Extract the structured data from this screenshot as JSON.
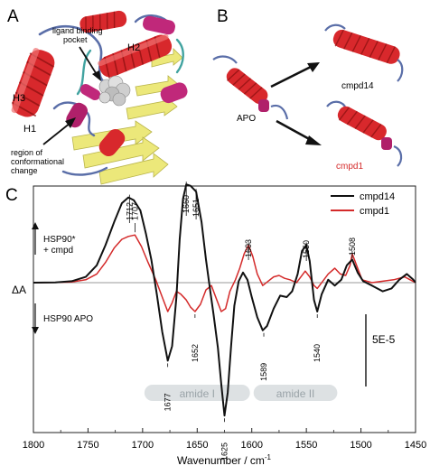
{
  "panels": {
    "a": {
      "letter": "A",
      "labels": {
        "ligand_pocket": [
          "ligand binding",
          "pocket"
        ],
        "h1": "H1",
        "h2": "H2",
        "h3": "H3",
        "region": [
          "region of",
          "conformational",
          "change"
        ]
      }
    },
    "b": {
      "letter": "B",
      "labels": {
        "apo": "APO",
        "cmpd14": "cmpd14",
        "cmpd1": "cmpd1"
      }
    },
    "c": {
      "letter": "C"
    }
  },
  "colors": {
    "helix_red": "#d8282c",
    "helix_magenta": "#c0287a",
    "coil_blue": "#5a6ea8",
    "sheet_yellow": "#ece87a",
    "ligand_gray": "#c9c9c9",
    "cmpd14": "#111111",
    "cmpd1": "#d42a2a",
    "baseline": "#9a9a9a",
    "band_gray": "#dde1e3"
  },
  "chart_data": {
    "type": "line",
    "xlabel_main": "Wavenumber / cm",
    "xlabel_sup": "-1",
    "ylabel": "ΔA",
    "xlim": [
      1800,
      1450
    ],
    "x_reversed": true,
    "xticks": [
      1800,
      1750,
      1700,
      1650,
      1600,
      1550,
      1500,
      1450
    ],
    "ylim_rel": [
      -1.0,
      0.8
    ],
    "legend_position": "top-right",
    "series": [
      {
        "name": "cmpd14",
        "color": "#111111",
        "points": [
          [
            1800,
            0
          ],
          [
            1780,
            0.002
          ],
          [
            1765,
            0.01
          ],
          [
            1752,
            0.04
          ],
          [
            1742,
            0.12
          ],
          [
            1734,
            0.26
          ],
          [
            1726,
            0.42
          ],
          [
            1719,
            0.55
          ],
          [
            1713,
            0.59
          ],
          [
            1708,
            0.57
          ],
          [
            1702,
            0.5
          ],
          [
            1697,
            0.34
          ],
          [
            1692,
            0.16
          ],
          [
            1687,
            -0.08
          ],
          [
            1682,
            -0.34
          ],
          [
            1677,
            -0.54
          ],
          [
            1673,
            -0.44
          ],
          [
            1669,
            -0.1
          ],
          [
            1666,
            0.3
          ],
          [
            1663,
            0.58
          ],
          [
            1660,
            0.68
          ],
          [
            1656,
            0.67
          ],
          [
            1651,
            0.63
          ],
          [
            1646,
            0.42
          ],
          [
            1642,
            0.16
          ],
          [
            1638,
            -0.06
          ],
          [
            1635,
            -0.22
          ],
          [
            1631,
            -0.45
          ],
          [
            1628,
            -0.7
          ],
          [
            1625,
            -0.92
          ],
          [
            1622,
            -0.76
          ],
          [
            1619,
            -0.44
          ],
          [
            1616,
            -0.16
          ],
          [
            1612,
            0.01
          ],
          [
            1608,
            0.07
          ],
          [
            1604,
            0.02
          ],
          [
            1600,
            -0.1
          ],
          [
            1595,
            -0.24
          ],
          [
            1590,
            -0.33
          ],
          [
            1586,
            -0.3
          ],
          [
            1580,
            -0.18
          ],
          [
            1574,
            -0.09
          ],
          [
            1568,
            -0.1
          ],
          [
            1563,
            -0.06
          ],
          [
            1558,
            0.06
          ],
          [
            1554,
            0.22
          ],
          [
            1550,
            0.26
          ],
          [
            1547,
            0.15
          ],
          [
            1543,
            -0.12
          ],
          [
            1540,
            -0.2
          ],
          [
            1536,
            -0.08
          ],
          [
            1530,
            0.02
          ],
          [
            1524,
            -0.02
          ],
          [
            1518,
            0.02
          ],
          [
            1513,
            0.12
          ],
          [
            1508,
            0.16
          ],
          [
            1503,
            0.07
          ],
          [
            1498,
            0.01
          ],
          [
            1490,
            -0.02
          ],
          [
            1480,
            -0.06
          ],
          [
            1472,
            -0.04
          ],
          [
            1465,
            0.02
          ],
          [
            1458,
            0.06
          ],
          [
            1452,
            0.02
          ],
          [
            1450,
            0
          ]
        ]
      },
      {
        "name": "cmpd1",
        "color": "#d42a2a",
        "points": [
          [
            1800,
            0
          ],
          [
            1780,
            0.002
          ],
          [
            1765,
            0.005
          ],
          [
            1752,
            0.02
          ],
          [
            1742,
            0.06
          ],
          [
            1734,
            0.14
          ],
          [
            1726,
            0.24
          ],
          [
            1719,
            0.3
          ],
          [
            1713,
            0.32
          ],
          [
            1707,
            0.33
          ],
          [
            1701,
            0.25
          ],
          [
            1695,
            0.14
          ],
          [
            1688,
            0.02
          ],
          [
            1682,
            -0.1
          ],
          [
            1677,
            -0.2
          ],
          [
            1673,
            -0.14
          ],
          [
            1669,
            -0.06
          ],
          [
            1665,
            -0.08
          ],
          [
            1660,
            -0.12
          ],
          [
            1656,
            -0.17
          ],
          [
            1652,
            -0.2
          ],
          [
            1647,
            -0.15
          ],
          [
            1642,
            -0.05
          ],
          [
            1637,
            -0.02
          ],
          [
            1632,
            -0.12
          ],
          [
            1628,
            -0.2
          ],
          [
            1624,
            -0.18
          ],
          [
            1620,
            -0.06
          ],
          [
            1615,
            0.02
          ],
          [
            1611,
            0.1
          ],
          [
            1607,
            0.2
          ],
          [
            1603,
            0.26
          ],
          [
            1599,
            0.18
          ],
          [
            1595,
            0.06
          ],
          [
            1590,
            -0.02
          ],
          [
            1585,
            0.01
          ],
          [
            1580,
            0.04
          ],
          [
            1575,
            0.05
          ],
          [
            1570,
            0.03
          ],
          [
            1565,
            0.02
          ],
          [
            1559,
            0.0
          ],
          [
            1555,
            0.04
          ],
          [
            1551,
            0.08
          ],
          [
            1547,
            0.04
          ],
          [
            1543,
            -0.02
          ],
          [
            1540,
            -0.04
          ],
          [
            1535,
            0.01
          ],
          [
            1530,
            0.06
          ],
          [
            1524,
            0.1
          ],
          [
            1519,
            0.06
          ],
          [
            1514,
            0.05
          ],
          [
            1510,
            0.12
          ],
          [
            1508,
            0.2
          ],
          [
            1504,
            0.12
          ],
          [
            1499,
            0.02
          ],
          [
            1490,
            0.0
          ],
          [
            1480,
            0.01
          ],
          [
            1470,
            0.02
          ],
          [
            1460,
            0.04
          ],
          [
            1455,
            0.02
          ],
          [
            1450,
            0
          ]
        ]
      }
    ],
    "peak_labels": [
      {
        "text": "1712",
        "x": 1712,
        "y": 0.59
      },
      {
        "text": "1707",
        "x": 1707,
        "y": 0.33
      },
      {
        "text": "1660",
        "x": 1660,
        "y": 0.68
      },
      {
        "text": "1651",
        "x": 1651,
        "y": 0.63
      },
      {
        "text": "1603",
        "x": 1603,
        "y": 0.26
      },
      {
        "text": "1550",
        "x": 1550,
        "y": 0.26
      },
      {
        "text": "1508",
        "x": 1508,
        "y": 0.2
      },
      {
        "text": "1677",
        "x": 1677,
        "y": -0.54
      },
      {
        "text": "1652",
        "x": 1652,
        "y": -0.2
      },
      {
        "text": "1625",
        "x": 1625,
        "y": -0.92
      },
      {
        "text": "1589",
        "x": 1589,
        "y": -0.33
      },
      {
        "text": "1540",
        "x": 1540,
        "y": -0.2
      }
    ],
    "bands": [
      {
        "label": "amide I",
        "from": 1700,
        "to": 1600
      },
      {
        "label": "amide II",
        "from": 1600,
        "to": 1520
      }
    ],
    "annotations": {
      "up_text": [
        "HSP90*",
        "+ cmpd"
      ],
      "down_text": "HSP90 APO",
      "scale_bar": {
        "label": "5E-5",
        "value_rel": 0.5
      }
    }
  }
}
